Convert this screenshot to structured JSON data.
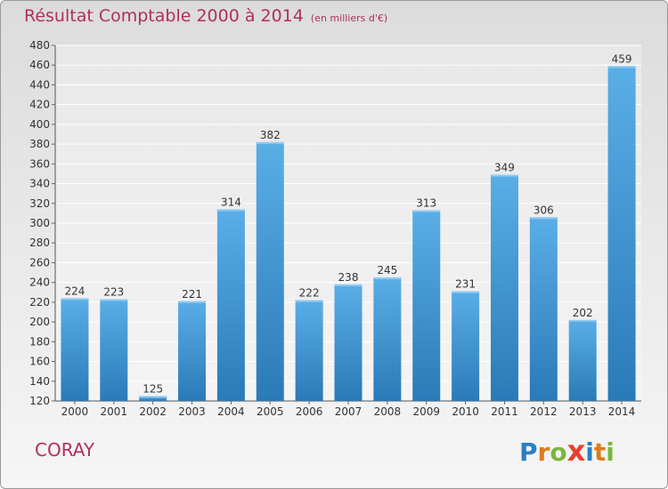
{
  "chart_data": {
    "type": "bar",
    "title": "Résultat Comptable 2000 à 2014",
    "subtitle": "(en milliers d'€)",
    "categories": [
      "2000",
      "2001",
      "2002",
      "2003",
      "2004",
      "2005",
      "2006",
      "2007",
      "2008",
      "2009",
      "2010",
      "2011",
      "2012",
      "2013",
      "2014"
    ],
    "values": [
      224,
      223,
      125,
      221,
      314,
      382,
      222,
      238,
      245,
      313,
      231,
      349,
      306,
      202,
      459
    ],
    "ylim": [
      120,
      480
    ],
    "yticks": [
      120,
      140,
      160,
      180,
      200,
      220,
      240,
      260,
      280,
      300,
      320,
      340,
      360,
      380,
      400,
      420,
      440,
      460,
      480
    ],
    "xlabel": "",
    "ylabel": "",
    "grid": true,
    "bar_color": "#4a9ed9"
  },
  "footer": {
    "commune": "CORAY",
    "logo_letters": [
      {
        "char": "P",
        "color": "#2c7fc1"
      },
      {
        "char": "r",
        "color": "#e07b1a"
      },
      {
        "char": "o",
        "color": "#7ab83a"
      },
      {
        "char": "x",
        "color": "#e8402e"
      },
      {
        "char": "i",
        "color": "#2c7fc1"
      },
      {
        "char": "t",
        "color": "#e07b1a"
      },
      {
        "char": "i",
        "color": "#7ab83a"
      }
    ]
  }
}
